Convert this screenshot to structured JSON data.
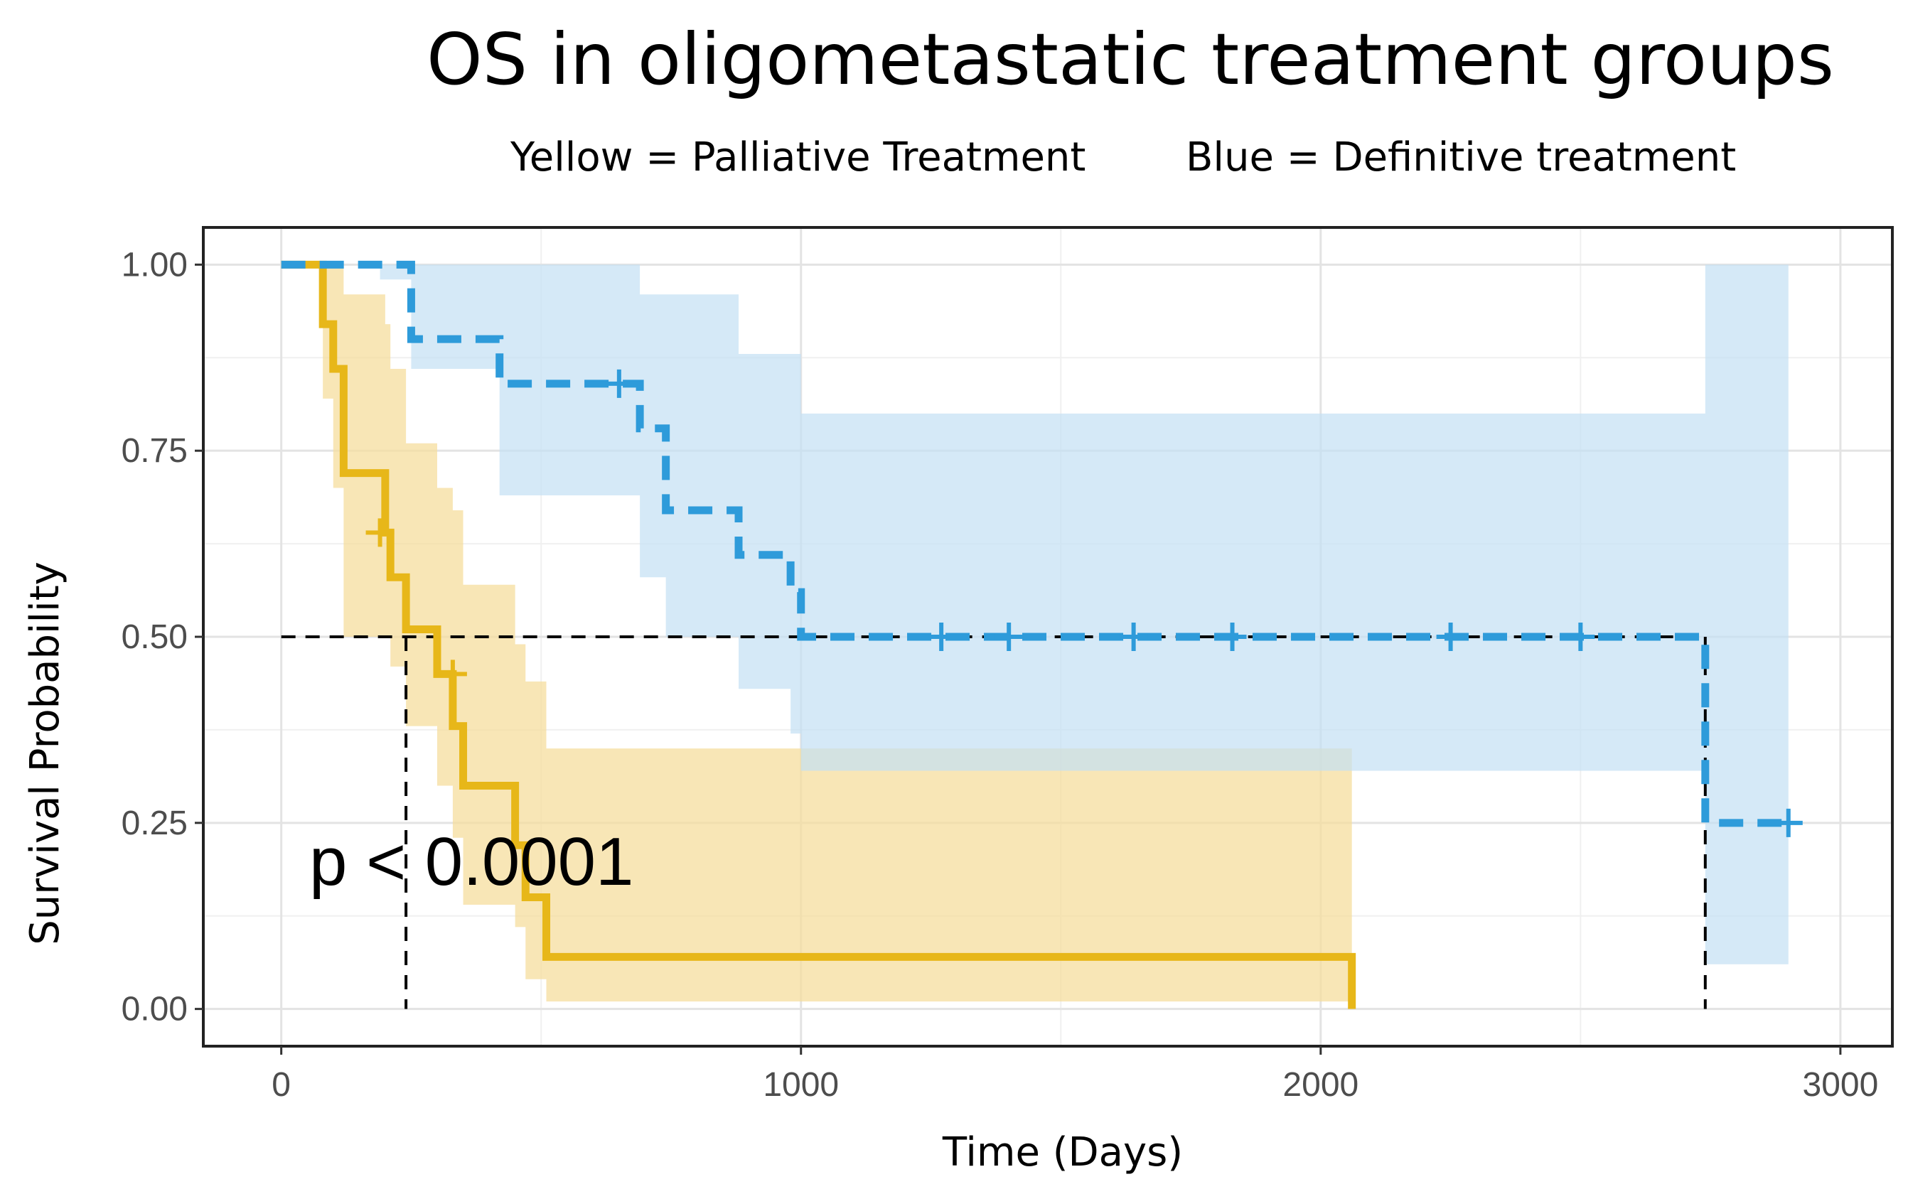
{
  "chart_data": {
    "type": "line",
    "subtype": "kaplan-meier",
    "title": "OS in oligometastatic treatment groups",
    "subtitle_left": "Yellow = Palliative Treatment",
    "subtitle_right": "Blue = Definitive treatment",
    "xlabel": "Time (Days)",
    "ylabel": "Survival Probability",
    "xlim": [
      -150,
      3100
    ],
    "ylim": [
      -0.05,
      1.05
    ],
    "xticks": [
      0,
      1000,
      2000,
      3000
    ],
    "xtick_labels": [
      "0",
      "1000",
      "2000",
      "3000"
    ],
    "yticks": [
      0,
      0.25,
      0.5,
      0.75,
      1.0
    ],
    "ytick_labels": [
      "0.00",
      "0.25",
      "0.50",
      "0.75",
      "1.00"
    ],
    "grid": true,
    "annotation": "p < 0.0001",
    "median_line": {
      "y": 0.5,
      "x_start": 0,
      "medians": [
        240,
        2740
      ]
    },
    "series": [
      {
        "name": "Palliative Treatment",
        "color": "#E7B719",
        "ci_color": "#F5DE9E",
        "style": "solid",
        "times": [
          0,
          60,
          80,
          100,
          120,
          200,
          210,
          240,
          300,
          330,
          350,
          450,
          470,
          510,
          2060
        ],
        "surv": [
          1.0,
          1.0,
          0.92,
          0.86,
          0.72,
          0.64,
          0.58,
          0.51,
          0.45,
          0.38,
          0.3,
          0.22,
          0.15,
          0.07,
          0.07
        ],
        "ci_upper": [
          1.0,
          1.0,
          1.0,
          1.0,
          0.96,
          0.92,
          0.86,
          0.76,
          0.7,
          0.67,
          0.57,
          0.49,
          0.44,
          0.35,
          0.35
        ],
        "ci_lower": [
          1.0,
          1.0,
          0.82,
          0.7,
          0.5,
          0.5,
          0.46,
          0.38,
          0.3,
          0.23,
          0.14,
          0.11,
          0.04,
          0.01,
          0.01
        ],
        "end_time": 2060,
        "censor_times": [
          190,
          330
        ],
        "censor_surv": [
          0.64,
          0.45
        ]
      },
      {
        "name": "Definitive treatment",
        "color": "#2E9BDA",
        "ci_color": "#C3E0F4",
        "style": "dashed",
        "times": [
          0,
          190,
          250,
          420,
          660,
          690,
          740,
          880,
          980,
          1000,
          2740
        ],
        "surv": [
          1.0,
          1.0,
          0.9,
          0.84,
          0.84,
          0.78,
          0.67,
          0.61,
          0.56,
          0.5,
          0.25
        ],
        "ci_upper": [
          1.0,
          1.0,
          1.0,
          1.0,
          1.0,
          0.96,
          0.96,
          0.88,
          0.88,
          0.8,
          1.0
        ],
        "ci_lower": [
          1.0,
          0.98,
          0.86,
          0.69,
          0.69,
          0.58,
          0.5,
          0.43,
          0.37,
          0.32,
          0.06
        ],
        "end_time": 2900,
        "censor_times": [
          650,
          1270,
          1400,
          1640,
          1830,
          2250,
          2500,
          2900
        ],
        "censor_surv": [
          0.84,
          0.5,
          0.5,
          0.5,
          0.5,
          0.5,
          0.5,
          0.25
        ]
      }
    ]
  }
}
